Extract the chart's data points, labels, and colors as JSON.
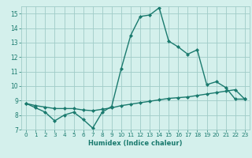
{
  "title": "",
  "xlabel": "Humidex (Indice chaleur)",
  "bg_color": "#d4f0ec",
  "grid_color": "#a0ccc8",
  "line_color": "#1a7a6e",
  "xmin": -0.5,
  "xmax": 23.5,
  "ymin": 7,
  "ymax": 15.5,
  "yticks": [
    7,
    8,
    9,
    10,
    11,
    12,
    13,
    14,
    15
  ],
  "xticks": [
    0,
    1,
    2,
    3,
    4,
    5,
    6,
    7,
    8,
    9,
    10,
    11,
    12,
    13,
    14,
    15,
    16,
    17,
    18,
    19,
    20,
    21,
    22,
    23
  ],
  "series1_x": [
    0,
    1,
    2,
    3,
    4,
    5,
    6,
    7,
    8,
    9,
    10,
    11,
    12,
    13,
    14,
    15,
    16,
    17,
    18,
    19,
    20,
    21,
    22,
    23
  ],
  "series1_y": [
    8.8,
    8.5,
    8.2,
    7.6,
    8.0,
    8.2,
    7.7,
    7.1,
    8.2,
    8.6,
    11.2,
    13.5,
    14.8,
    14.9,
    15.4,
    13.1,
    12.7,
    12.2,
    12.5,
    10.1,
    10.3,
    9.9,
    9.1,
    9.1
  ],
  "series2_x": [
    0,
    1,
    2,
    3,
    4,
    5,
    6,
    7,
    8,
    9,
    10,
    11,
    12,
    13,
    14,
    15,
    16,
    17,
    18,
    19,
    20,
    21,
    22,
    23
  ],
  "series2_y": [
    8.8,
    8.65,
    8.55,
    8.45,
    8.45,
    8.45,
    8.35,
    8.3,
    8.4,
    8.5,
    8.65,
    8.75,
    8.85,
    8.95,
    9.05,
    9.15,
    9.2,
    9.25,
    9.35,
    9.45,
    9.55,
    9.65,
    9.75,
    9.1
  ],
  "marker": "D",
  "markersize": 2.0,
  "linewidth": 1.0,
  "xlabel_fontsize": 6.0,
  "tick_fontsize": 5.2
}
